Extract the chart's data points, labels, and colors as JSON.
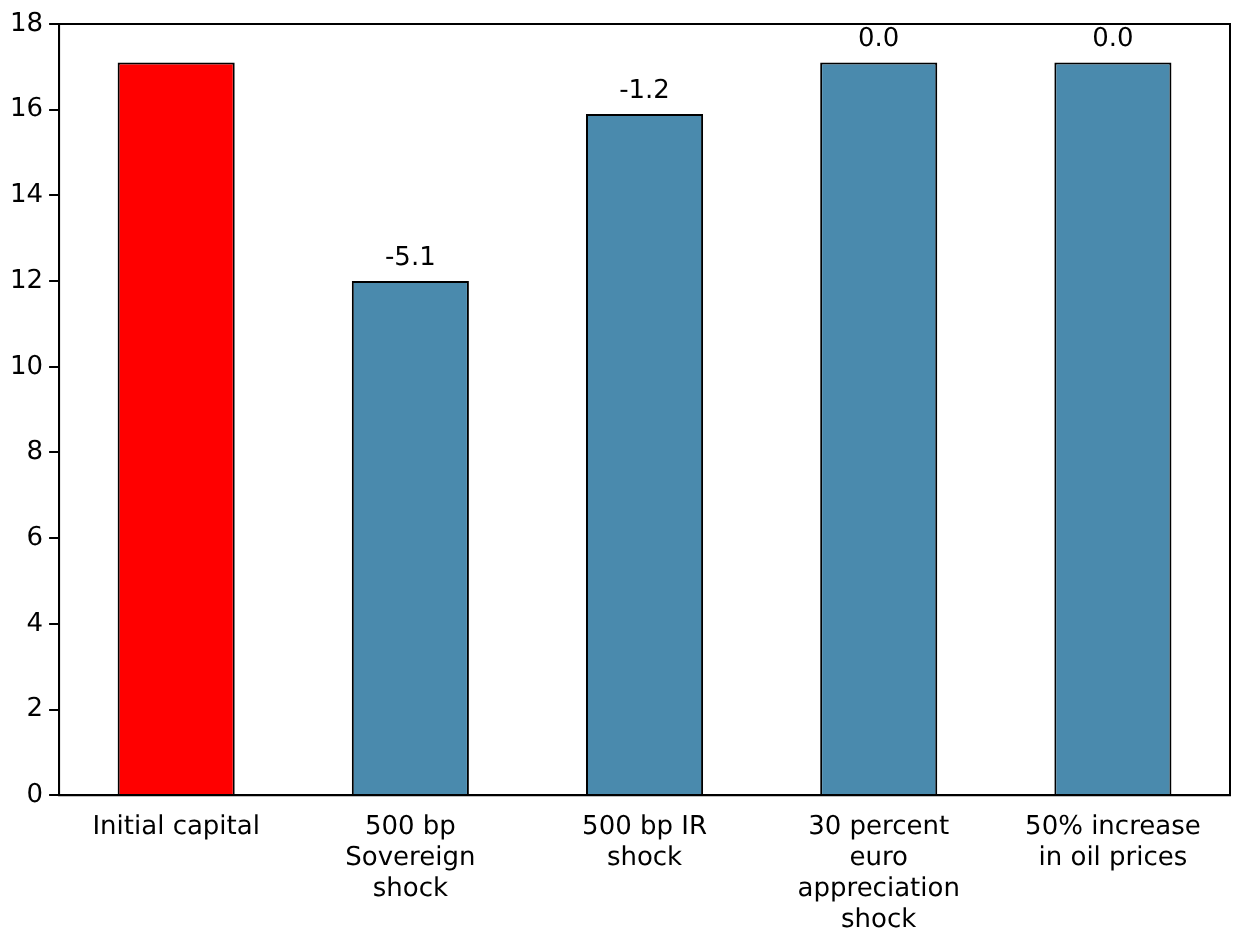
{
  "chart_data": {
    "type": "bar",
    "categories": [
      "Initial capital",
      "500 bp Sovereign shock",
      "500 bp IR shock",
      "30 percent euro appreciation shock",
      "50% increase in oil prices"
    ],
    "values": [
      17.1,
      12.0,
      15.9,
      17.1,
      17.1
    ],
    "colors": [
      "#ff0000",
      "#4a8aad",
      "#4a8aad",
      "#4a8aad",
      "#4a8aad"
    ],
    "annotations": [
      {
        "text": "-5.1",
        "x": "500 bp Sovereign shock",
        "y": 12.0
      },
      {
        "text": "-1.2",
        "x": "500 bp IR shock",
        "y": 15.9
      },
      {
        "text": "0.0",
        "x": "30 percent euro appreciation shock",
        "y": 17.1
      },
      {
        "text": "0.0",
        "x": "50% increase in oil prices",
        "y": 17.1
      }
    ],
    "ylim": [
      0,
      18
    ],
    "yticks": [
      0,
      2,
      4,
      6,
      8,
      10,
      12,
      14,
      16,
      18
    ],
    "grid": false,
    "legend": false
  }
}
